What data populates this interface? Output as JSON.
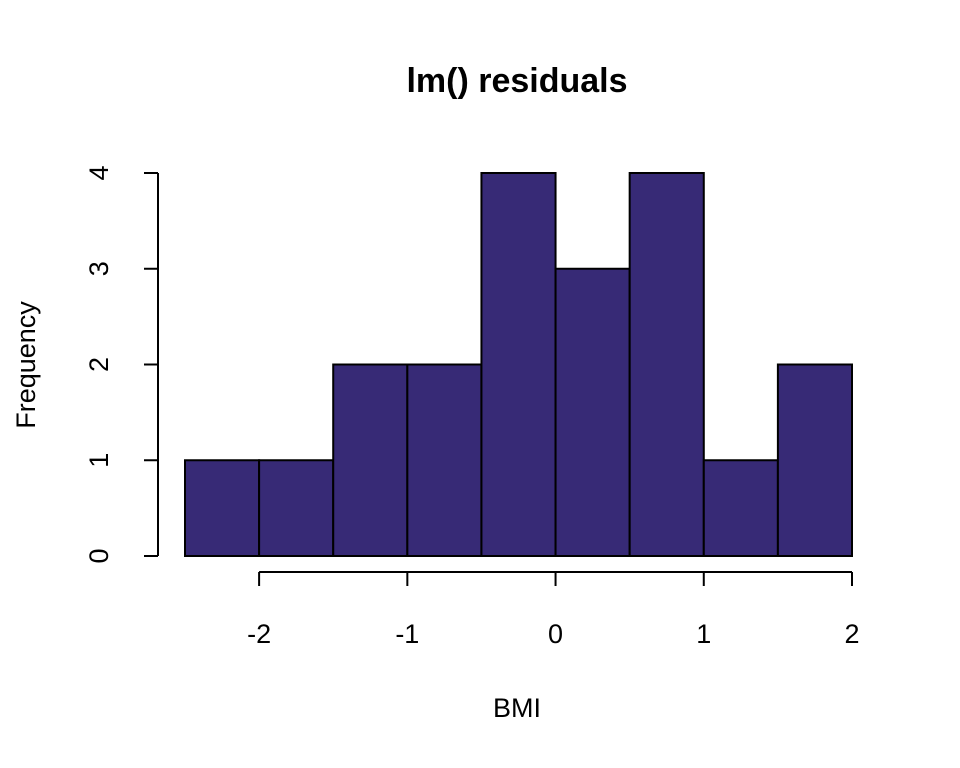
{
  "chart_data": {
    "type": "bar",
    "subtype": "histogram",
    "title": "lm() residuals",
    "xlabel": "BMI",
    "ylabel": "Frequency",
    "bin_edges": [
      -2.5,
      -2.0,
      -1.5,
      -1.0,
      -0.5,
      0.0,
      0.5,
      1.0,
      1.5,
      2.0
    ],
    "values": [
      1,
      1,
      2,
      2,
      4,
      3,
      4,
      1,
      2
    ],
    "x_ticks": [
      -2,
      -1,
      0,
      1,
      2
    ],
    "x_tick_labels": [
      "-2",
      "-1",
      "0",
      "1",
      "2"
    ],
    "y_ticks": [
      0,
      1,
      2,
      3,
      4
    ],
    "y_tick_labels": [
      "0",
      "1",
      "2",
      "3",
      "4"
    ],
    "xlim": [
      -2.5,
      2.0
    ],
    "ylim": [
      0,
      4
    ],
    "bar_color": "#372A76",
    "grid": false,
    "legend": "none"
  }
}
